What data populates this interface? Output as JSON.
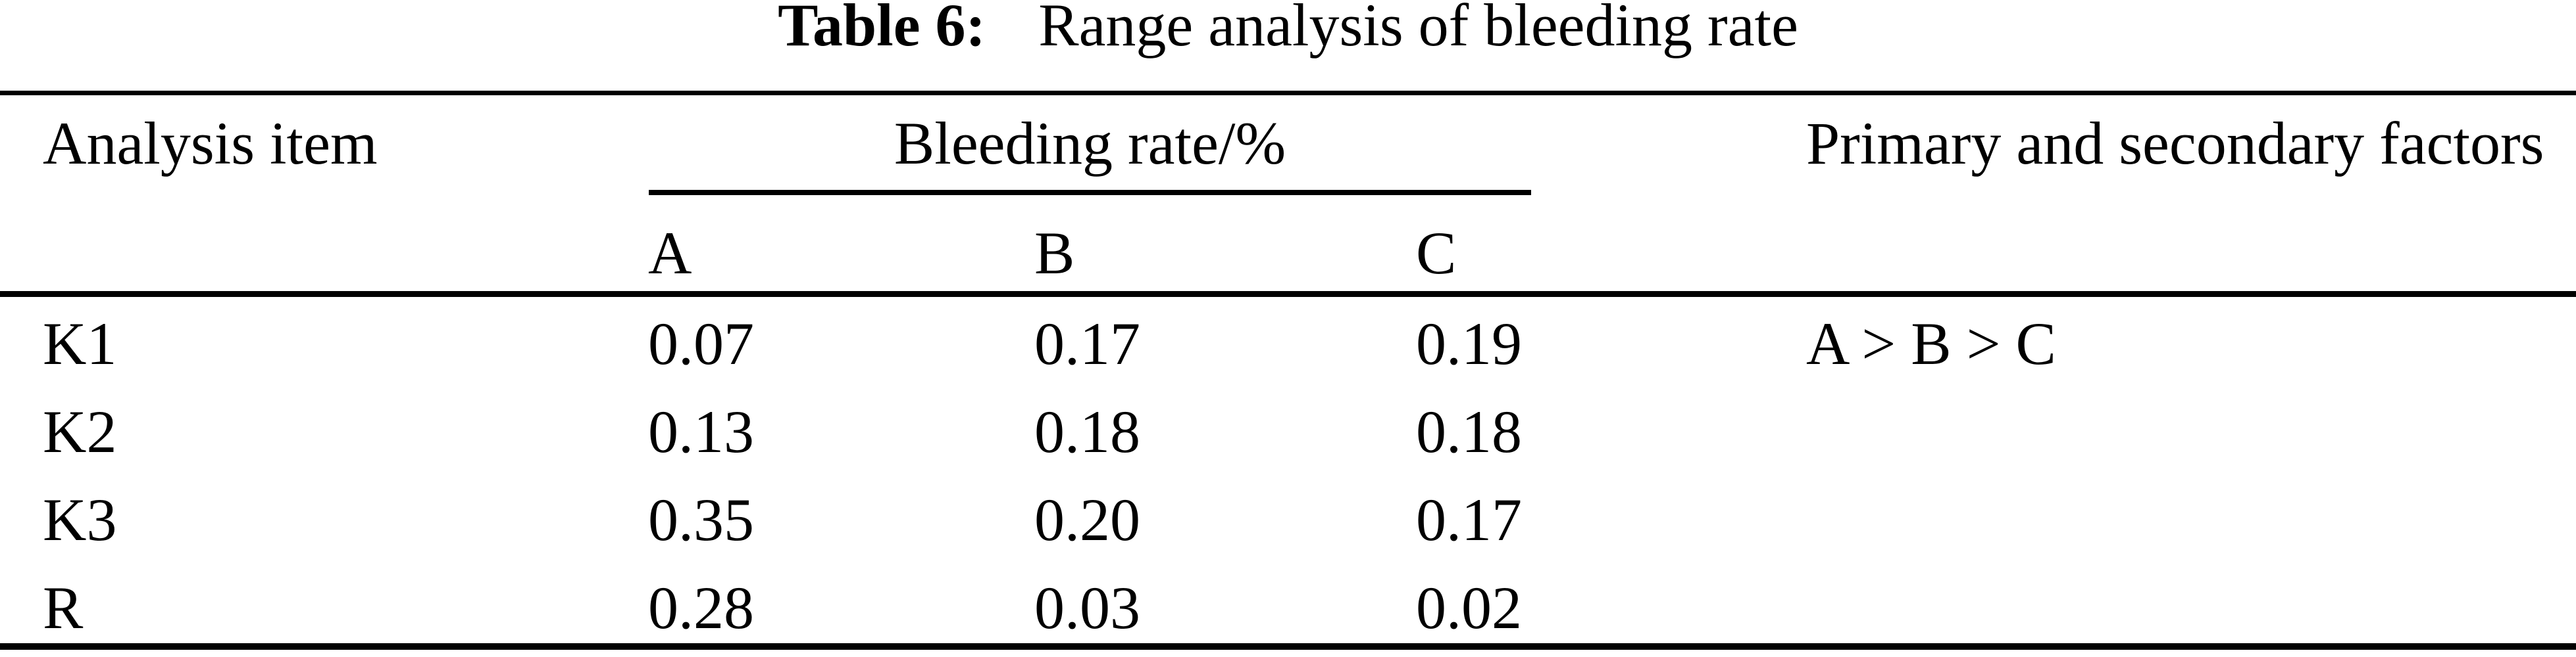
{
  "caption": {
    "label": "Table 6:",
    "title": "Range analysis of bleeding rate"
  },
  "table": {
    "header": {
      "analysis_item": "Analysis item",
      "bleeding_rate_group": "Bleeding rate/%",
      "factors": "Primary and secondary factors",
      "subcolumns": [
        "A",
        "B",
        "C"
      ]
    },
    "rows": [
      {
        "item": "K1",
        "a": "0.07",
        "b": "0.17",
        "c": "0.19",
        "factors": "A > B > C"
      },
      {
        "item": "K2",
        "a": "0.13",
        "b": "0.18",
        "c": "0.18",
        "factors": ""
      },
      {
        "item": "K3",
        "a": "0.35",
        "b": "0.20",
        "c": "0.17",
        "factors": ""
      },
      {
        "item": "R",
        "a": "0.28",
        "b": "0.03",
        "c": "0.02",
        "factors": ""
      }
    ]
  },
  "colors": {
    "text": "#000000",
    "background": "#ffffff",
    "rule": "#000000"
  }
}
